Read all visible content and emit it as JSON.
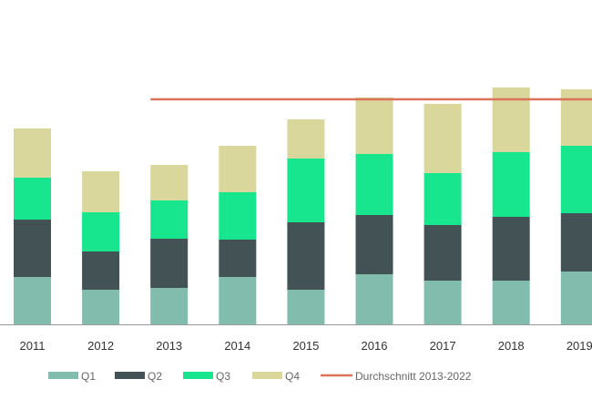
{
  "chart_data": {
    "type": "bar",
    "stacked": true,
    "categories": [
      "2011",
      "2012",
      "2013",
      "2014",
      "2015",
      "2016",
      "2017",
      "2018",
      "2019"
    ],
    "series": [
      {
        "name": "Q1",
        "color": "#82bcad",
        "values": [
          52,
          38,
          40,
          52,
          38,
          55,
          48,
          48,
          58
        ]
      },
      {
        "name": "Q2",
        "color": "#435254",
        "values": [
          63,
          42,
          54,
          41,
          74,
          65,
          61,
          70,
          64
        ]
      },
      {
        "name": "Q3",
        "color": "#18e68e",
        "values": [
          46,
          43,
          42,
          52,
          70,
          67,
          57,
          71,
          74
        ]
      },
      {
        "name": "Q4",
        "color": "#d9d79b",
        "values": [
          54,
          45,
          39,
          51,
          43,
          62,
          76,
          71,
          62
        ]
      }
    ],
    "reference_line": {
      "name": "Durchschnitt 2013-2022",
      "color": "#d9735a",
      "value": 247,
      "from_category": "2013"
    },
    "ylim": [
      0,
      356
    ],
    "grid": false,
    "y_axis_visible": false,
    "legend_position": "bottom"
  }
}
